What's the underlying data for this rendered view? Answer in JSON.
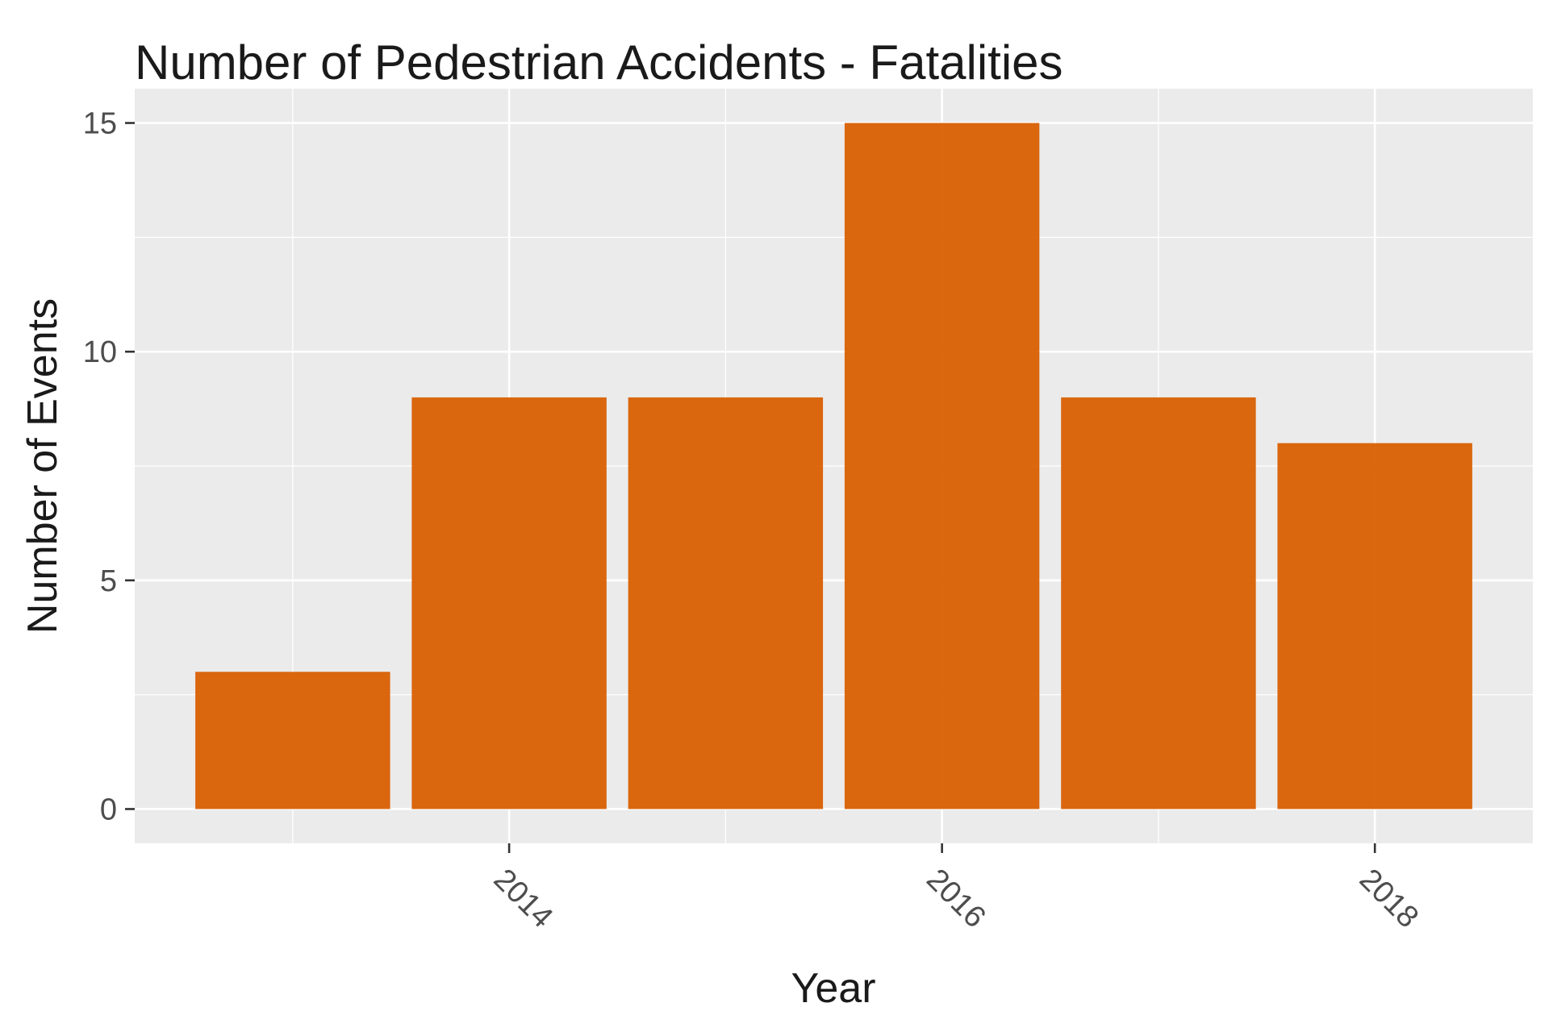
{
  "chart_data": {
    "type": "bar",
    "title": "Number of Pedestrian Accidents - Fatalities",
    "xlabel": "Year",
    "ylabel": "Number of Events",
    "categories": [
      2013,
      2014,
      2015,
      2016,
      2017,
      2018
    ],
    "values": [
      3,
      9,
      9,
      15,
      9,
      8
    ],
    "x_tick_labels": [
      "2014",
      "2016",
      "2018"
    ],
    "y_tick_labels": [
      "0",
      "5",
      "10",
      "15"
    ],
    "xlim": [
      2012.27,
      2018.73
    ],
    "ylim": [
      -0.75,
      15.75
    ],
    "bar_color": "#D95F02",
    "panel_background": "#EBEBEB",
    "grid": true,
    "legend": "none"
  }
}
